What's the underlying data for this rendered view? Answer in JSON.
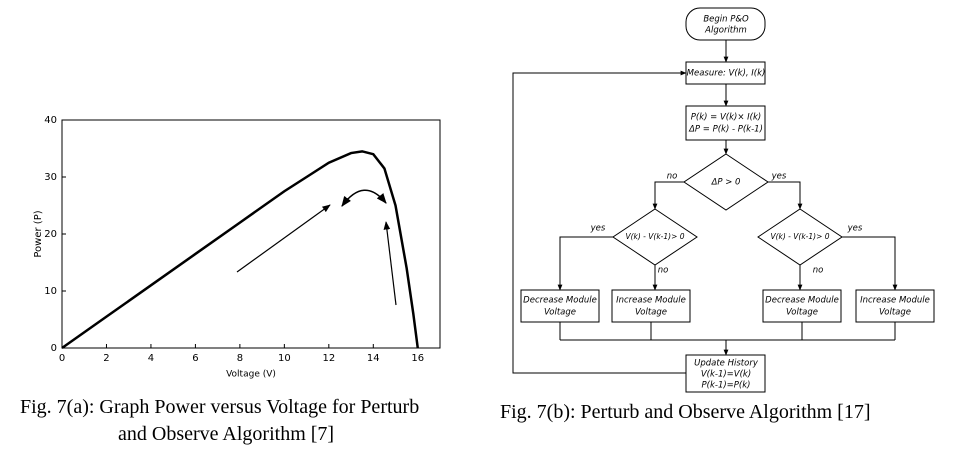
{
  "chart_data": {
    "type": "line",
    "xlabel": "Voltage (V)",
    "ylabel": "Power (P)",
    "x": [
      0,
      2,
      4,
      6,
      8,
      10,
      11,
      12,
      13,
      13.5,
      14,
      14.5,
      15,
      15.5,
      15.8,
      16
    ],
    "series": [
      {
        "color": "#000000",
        "values": [
          0,
          5.5,
          11,
          16.5,
          22,
          27.5,
          30,
          32.5,
          34.2,
          34.5,
          34,
          31.5,
          25,
          14,
          6,
          0
        ]
      }
    ],
    "xlim": [
      0,
      17
    ],
    "ylim": [
      0,
      40
    ],
    "xticks": [
      0,
      2,
      4,
      6,
      8,
      10,
      12,
      14,
      16
    ],
    "yticks": [
      0,
      10,
      20,
      30,
      40
    ],
    "grid": false
  },
  "captions": {
    "left": [
      "Fig. 7(a): Graph Power versus Voltage for Perturb",
      "and Observe Algorithm [7]"
    ],
    "right": [
      "Fig. 7(b): Perturb and Observe Algorithm [17]"
    ]
  },
  "flowchart": {
    "nodes": [
      {
        "lines": [
          "Begin P&O",
          "Algorithm"
        ]
      },
      {
        "lines": [
          "Measure: V(k), I(k)"
        ]
      },
      {
        "lines": [
          "P(k) = V(k)× I(k)",
          "ΔP = P(k) - P(k-1)"
        ]
      },
      {
        "lines": [
          "ΔP > 0"
        ]
      },
      {
        "lines": [
          "V(k) - V(k-1)> 0"
        ]
      },
      {
        "lines": [
          "V(k) - V(k-1)> 0"
        ]
      },
      {
        "lines": [
          "Decrease Module",
          "Voltage"
        ]
      },
      {
        "lines": [
          "Increase Module",
          "Voltage"
        ]
      },
      {
        "lines": [
          "Decrease Module",
          "Voltage"
        ]
      },
      {
        "lines": [
          "Increase Module",
          "Voltage"
        ]
      },
      {
        "lines": [
          "Update History",
          "V(k-1)=V(k)",
          "P(k-1)=P(k)"
        ]
      }
    ],
    "edge_labels": [
      "no",
      "yes",
      "yes",
      "no",
      "no",
      "yes"
    ]
  }
}
